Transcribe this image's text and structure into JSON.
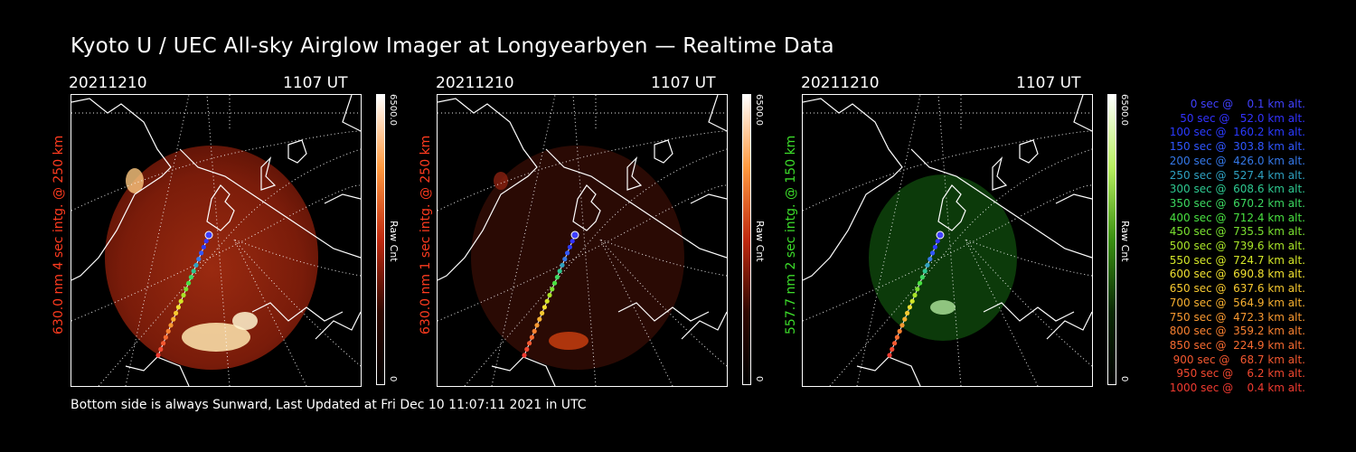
{
  "title": "Kyoto U / UEC All-sky Airglow Imager at Longyearbyen — Realtime Data",
  "footer": "Bottom side is always Sunward, Last Updated at Fri Dec 10 11:07:11 2021 in UTC",
  "panels": [
    {
      "date": "20211210",
      "time": "1107 UT",
      "ylabel": "630.0 nm 4 sec intg. @ 250 km",
      "ylabel_color": "#ff3b1f",
      "cbar_max": "6500.0",
      "cbar_min": "0",
      "cbar_label": "Raw Cnt",
      "tint": "red"
    },
    {
      "date": "20211210",
      "time": "1107 UT",
      "ylabel": "630.0 nm 1 sec intg. @ 250 km",
      "ylabel_color": "#ff3b1f",
      "cbar_max": "6500.0",
      "cbar_min": "0",
      "cbar_label": "Raw Cnt",
      "tint": "darkred"
    },
    {
      "date": "20211210",
      "time": "1107 UT",
      "ylabel": "557.7 nm 2 sec intg. @ 150 km",
      "ylabel_color": "#3cdc2a",
      "cbar_max": "6500.0",
      "cbar_min": "0",
      "cbar_label": "Raw Cnt",
      "tint": "green"
    }
  ],
  "legend": [
    {
      "text": "0 sec @    0.1 km alt.",
      "color": "#4040ff"
    },
    {
      "text": "50 sec @   52.0 km alt.",
      "color": "#3232ff"
    },
    {
      "text": "100 sec @  160.2 km alt.",
      "color": "#2a3aff"
    },
    {
      "text": "150 sec @  303.8 km alt.",
      "color": "#2f56ff"
    },
    {
      "text": "200 sec @  426.0 km alt.",
      "color": "#3478e8"
    },
    {
      "text": "250 sec @  527.4 km alt.",
      "color": "#2ea0c0"
    },
    {
      "text": "300 sec @  608.6 km alt.",
      "color": "#2ec890"
    },
    {
      "text": "350 sec @  670.2 km alt.",
      "color": "#3cd860"
    },
    {
      "text": "400 sec @  712.4 km alt.",
      "color": "#48e040"
    },
    {
      "text": "450 sec @  735.5 km alt.",
      "color": "#7ae030"
    },
    {
      "text": "500 sec @  739.6 km alt.",
      "color": "#a8e428"
    },
    {
      "text": "550 sec @  724.7 km alt.",
      "color": "#d4e628"
    },
    {
      "text": "600 sec @  690.8 km alt.",
      "color": "#f0e030"
    },
    {
      "text": "650 sec @  637.6 km alt.",
      "color": "#f6c830"
    },
    {
      "text": "700 sec @  564.9 km alt.",
      "color": "#f8b030"
    },
    {
      "text": "750 sec @  472.3 km alt.",
      "color": "#f89830"
    },
    {
      "text": "800 sec @  359.2 km alt.",
      "color": "#f88030"
    },
    {
      "text": "850 sec @  224.9 km alt.",
      "color": "#f66a30"
    },
    {
      "text": "900 sec @   68.7 km alt.",
      "color": "#f45830"
    },
    {
      "text": "950 sec @    6.2 km alt.",
      "color": "#f24830"
    },
    {
      "text": "1000 sec @    0.4 km alt.",
      "color": "#f03a30"
    }
  ]
}
